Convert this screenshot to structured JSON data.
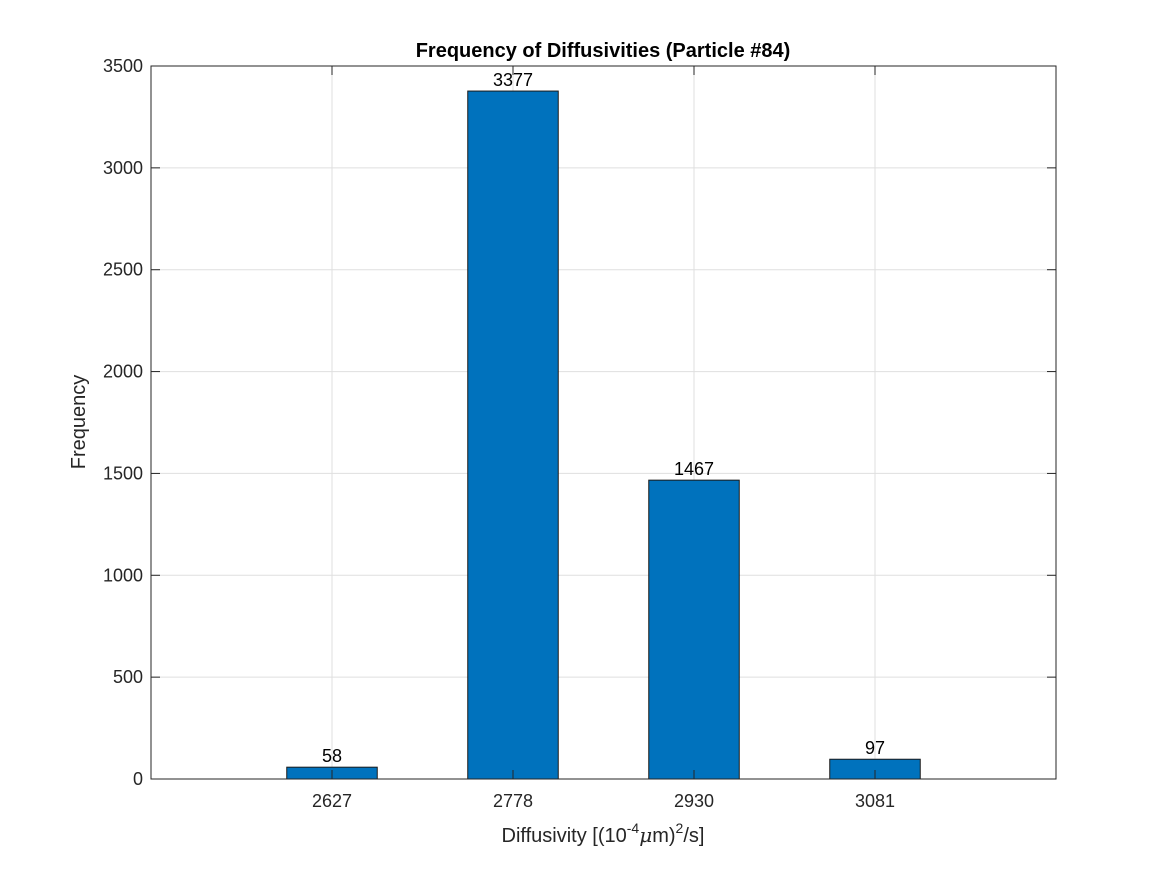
{
  "chart_data": {
    "type": "bar",
    "title": "Frequency of Diffusivities (Particle #84)",
    "xlabel": {
      "prefix": "Diffusivity [(10",
      "exponent": "-4",
      "mu": "μ",
      "middle": "m)",
      "power": "2",
      "suffix": "/s]"
    },
    "ylabel": "Frequency",
    "categories": [
      "2627",
      "2778",
      "2930",
      "3081"
    ],
    "values": [
      58,
      3377,
      1467,
      97
    ],
    "data_labels": [
      "58",
      "3377",
      "1467",
      "97"
    ],
    "ylim": [
      0,
      3500
    ],
    "yticks": [
      0,
      500,
      1000,
      1500,
      2000,
      2500,
      3000,
      3500
    ],
    "ytick_labels": [
      "0",
      "500",
      "1000",
      "1500",
      "2000",
      "2500",
      "3000",
      "3500"
    ],
    "grid": true,
    "bar_color": "#0072bd"
  }
}
